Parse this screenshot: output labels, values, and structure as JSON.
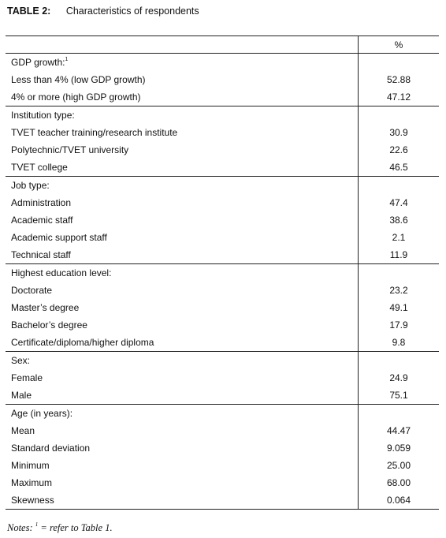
{
  "caption": {
    "label": "TABLE 2:",
    "title": "Characteristics of respondents"
  },
  "header": {
    "col1": "",
    "col2": "%"
  },
  "groups": [
    {
      "title": "GDP growth:",
      "sup": "1",
      "rows": [
        {
          "label": "Less than 4% (low GDP growth)",
          "value": "52.88"
        },
        {
          "label": "4% or more (high GDP growth)",
          "value": "47.12"
        }
      ]
    },
    {
      "title": "Institution type:",
      "rows": [
        {
          "label": "TVET teacher training/research institute",
          "value": "30.9"
        },
        {
          "label": "Polytechnic/TVET university",
          "value": "22.6"
        },
        {
          "label": "TVET college",
          "value": "46.5"
        }
      ]
    },
    {
      "title": "Job type:",
      "rows": [
        {
          "label": "Administration",
          "value": "47.4"
        },
        {
          "label": "Academic staff",
          "value": "38.6"
        },
        {
          "label": "Academic support staff",
          "value": "2.1"
        },
        {
          "label": "Technical staff",
          "value": "11.9"
        }
      ]
    },
    {
      "title": "Highest education level:",
      "rows": [
        {
          "label": "Doctorate",
          "value": "23.2"
        },
        {
          "label": "Master’s degree",
          "value": "49.1"
        },
        {
          "label": "Bachelor’s degree",
          "value": "17.9"
        },
        {
          "label": "Certificate/diploma/higher diploma",
          "value": "9.8"
        }
      ]
    },
    {
      "title": "Sex:",
      "rows": [
        {
          "label": "Female",
          "value": "24.9"
        },
        {
          "label": "Male",
          "value": "75.1"
        }
      ]
    },
    {
      "title": "Age (in years):",
      "rows": [
        {
          "label": "Mean",
          "value": "44.47"
        },
        {
          "label": "Standard deviation",
          "value": "9.059"
        },
        {
          "label": "Minimum",
          "value": "25.00"
        },
        {
          "label": "Maximum",
          "value": "68.00"
        },
        {
          "label": "Skewness",
          "value": "0.064"
        }
      ]
    }
  ],
  "notes": {
    "prefix": "Notes:",
    "sup": "1",
    "text": " = refer to Table 1."
  }
}
